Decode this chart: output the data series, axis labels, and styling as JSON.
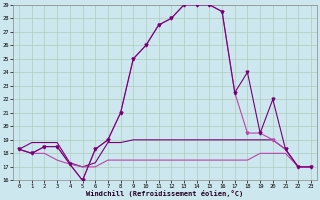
{
  "xlabel": "Windchill (Refroidissement éolien,°C)",
  "hours": [
    0,
    1,
    2,
    3,
    4,
    5,
    6,
    7,
    8,
    9,
    10,
    11,
    12,
    13,
    14,
    15,
    16,
    17,
    18,
    19,
    20,
    21,
    22,
    23
  ],
  "line_main": [
    18.3,
    18.0,
    18.5,
    18.5,
    17.2,
    16.0,
    18.3,
    19.0,
    21.0,
    25.0,
    26.0,
    27.5,
    28.0,
    29.0,
    29.0,
    29.0,
    28.5,
    22.5,
    24.0,
    19.5,
    22.0,
    18.3,
    17.0,
    17.0
  ],
  "line_second": [
    18.3,
    18.0,
    18.5,
    18.5,
    17.2,
    16.0,
    18.3,
    19.0,
    21.0,
    25.0,
    26.0,
    27.5,
    28.0,
    29.0,
    29.0,
    29.0,
    28.5,
    22.5,
    19.5,
    19.5,
    19.0,
    18.3,
    17.0,
    17.0
  ],
  "line_upper_flat": [
    18.3,
    18.8,
    18.8,
    18.8,
    17.3,
    17.0,
    17.3,
    18.8,
    18.8,
    19.0,
    19.0,
    19.0,
    19.0,
    19.0,
    19.0,
    19.0,
    19.0,
    19.0,
    19.0,
    19.0,
    19.0,
    18.3,
    17.0,
    17.0
  ],
  "line_lower_flat": [
    18.3,
    18.0,
    18.0,
    17.5,
    17.2,
    17.0,
    17.0,
    17.5,
    17.5,
    17.5,
    17.5,
    17.5,
    17.5,
    17.5,
    17.5,
    17.5,
    17.5,
    17.5,
    17.5,
    18.0,
    18.0,
    18.0,
    17.0,
    17.0
  ],
  "ylim_min": 16,
  "ylim_max": 29,
  "yticks": [
    16,
    17,
    18,
    19,
    20,
    21,
    22,
    23,
    24,
    25,
    26,
    27,
    28,
    29
  ],
  "bg_color": "#cce8ee",
  "grid_color": "#b0ccbb",
  "dark_purple": "#770077",
  "light_purple": "#bb44aa"
}
